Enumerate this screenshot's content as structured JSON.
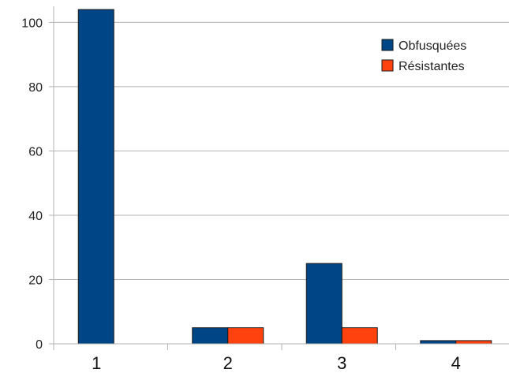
{
  "chart_data": {
    "type": "bar",
    "title": "",
    "xlabel": "",
    "ylabel": "",
    "categories": [
      "1",
      "2",
      "3",
      "4"
    ],
    "series": [
      {
        "name": "Obfusquées",
        "color": "#004586",
        "values": [
          104,
          5,
          25,
          1
        ]
      },
      {
        "name": "Résistantes",
        "color": "#ff420e",
        "values": [
          0,
          5,
          5,
          1
        ]
      }
    ],
    "ylim": [
      0,
      105
    ],
    "yticks": [
      "0",
      "20",
      "40",
      "60",
      "80",
      "100"
    ],
    "grid": true,
    "legend_position": "top-right"
  }
}
